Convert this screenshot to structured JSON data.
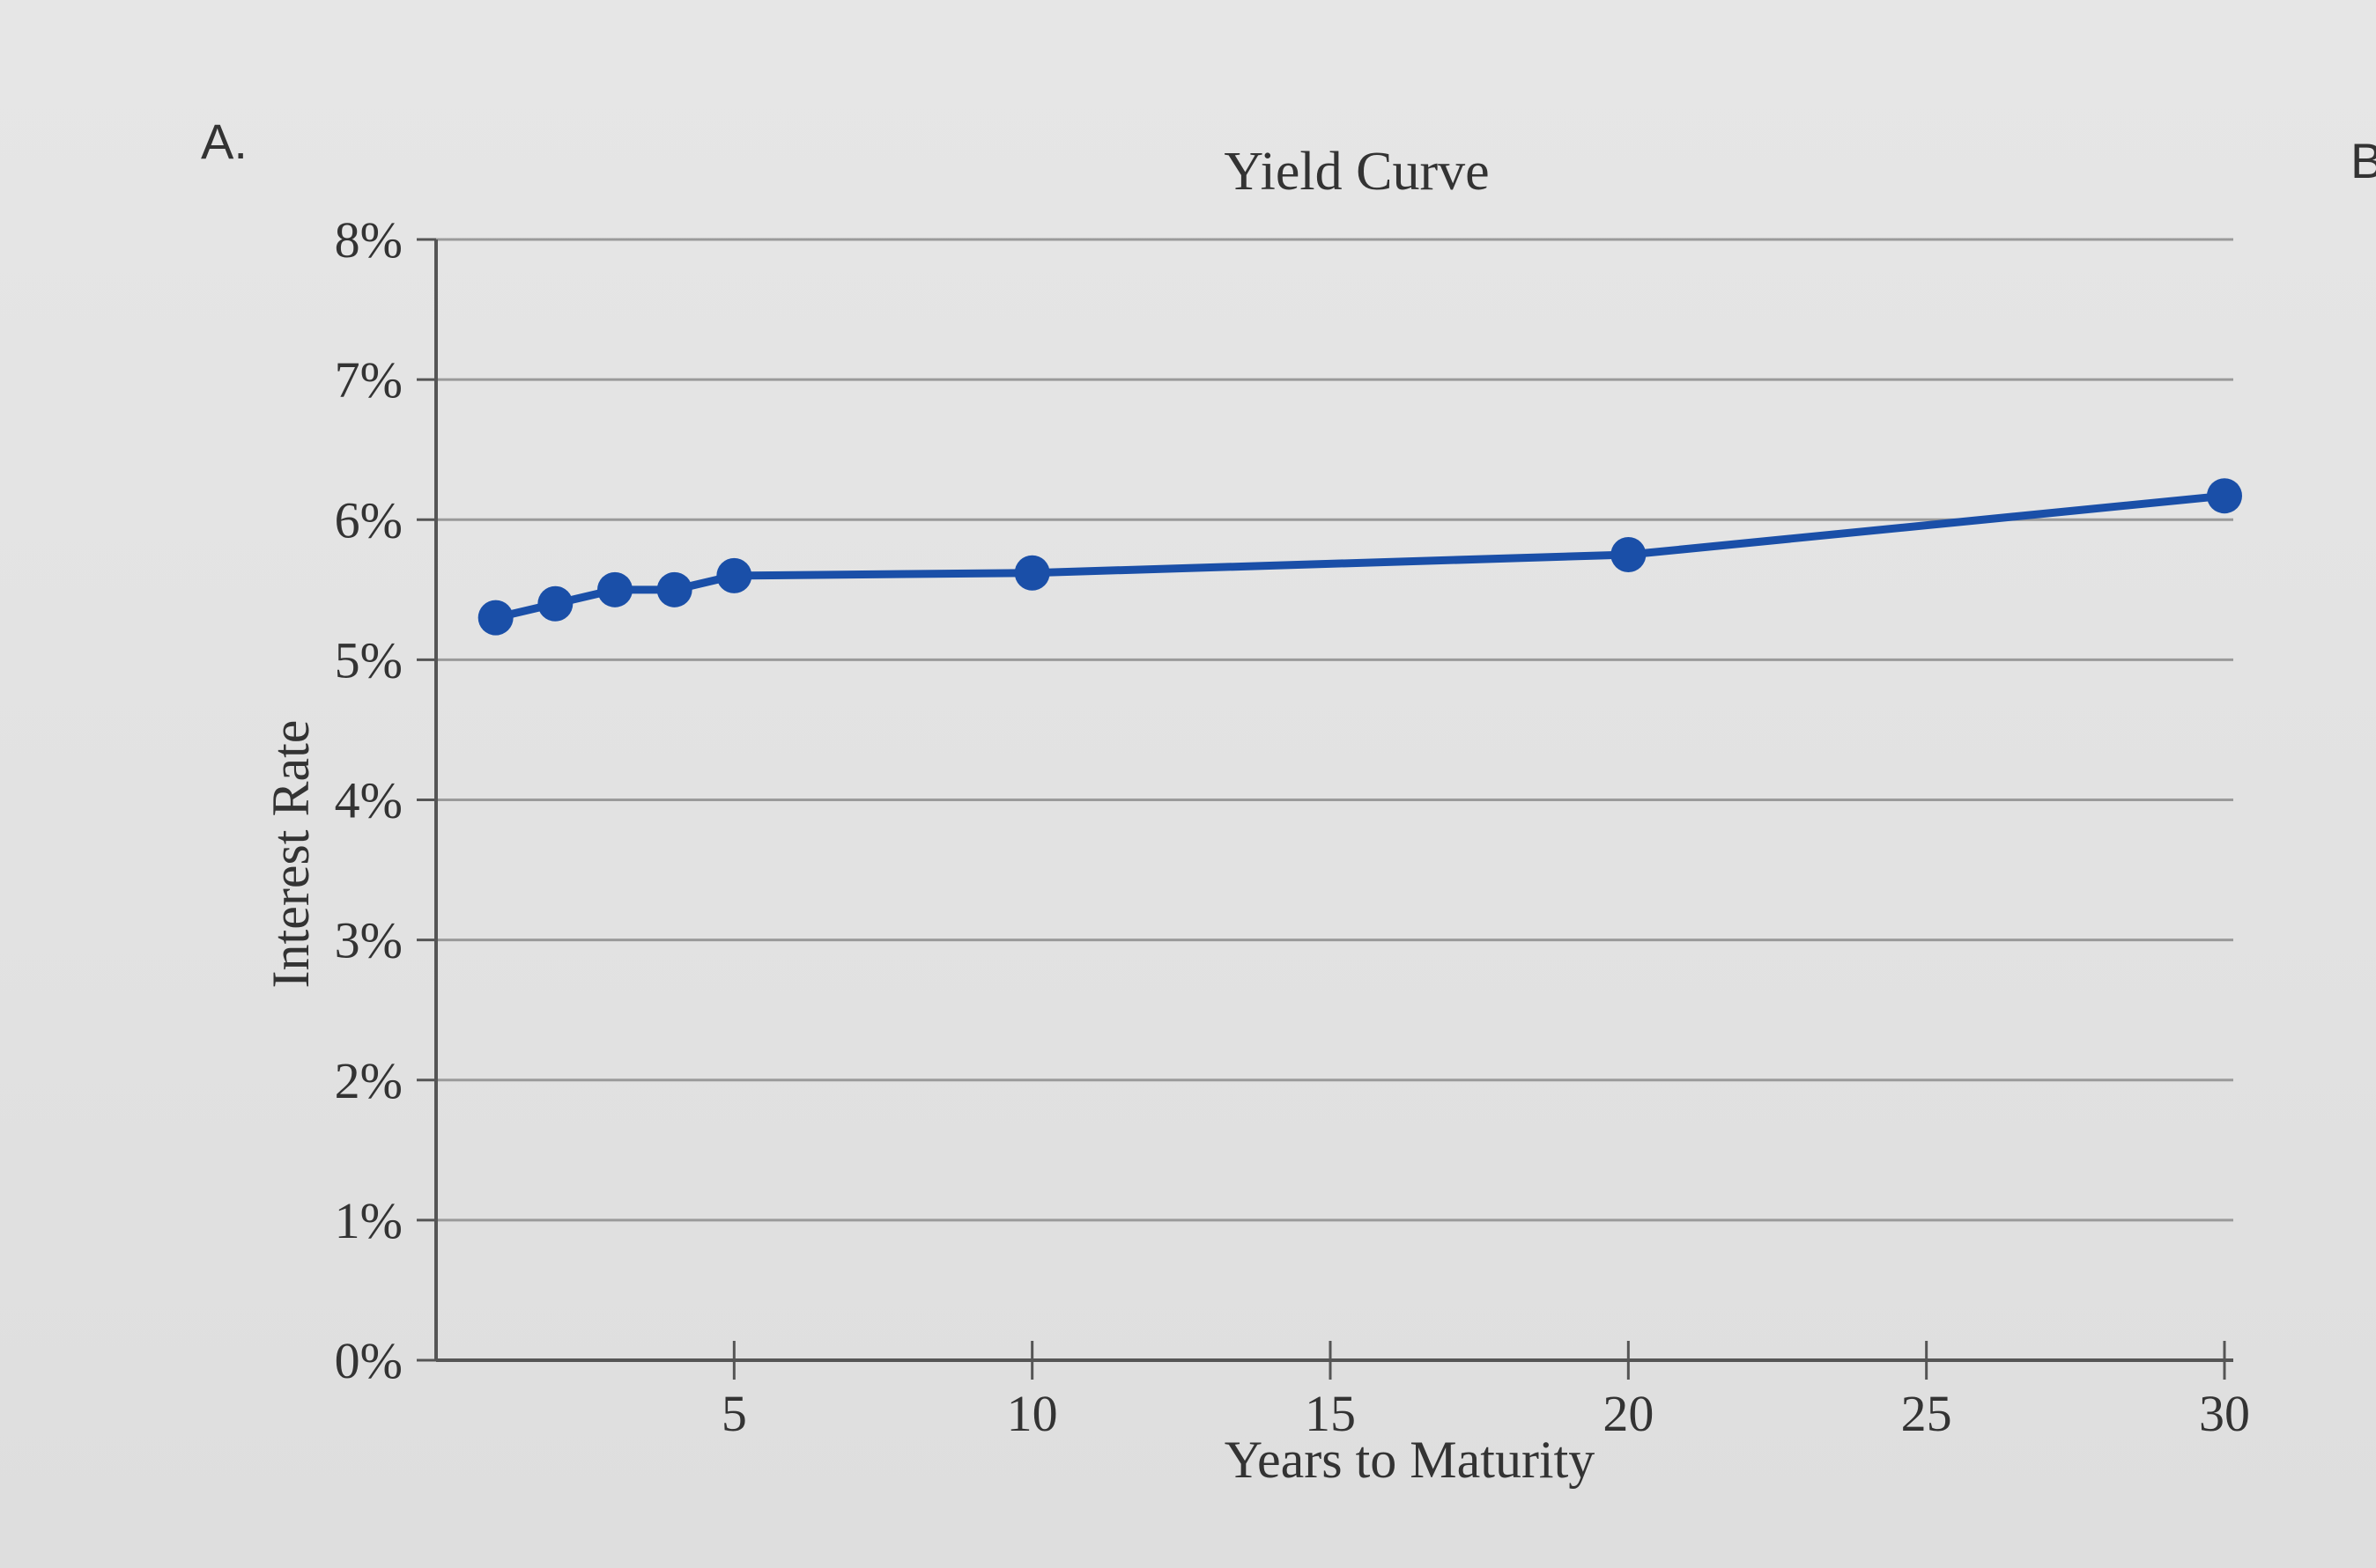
{
  "figure_labels": {
    "left": "A.",
    "right": "B"
  },
  "chart_data": {
    "type": "line",
    "title": "Yield Curve",
    "xlabel": "Years to Maturity",
    "ylabel": "Interest Rate",
    "xlim": [
      0,
      30
    ],
    "ylim": [
      0,
      8
    ],
    "x_ticks": [
      5,
      10,
      15,
      20,
      25,
      30
    ],
    "x_tick_labels": [
      "5",
      "10",
      "15",
      "20",
      "25",
      "30"
    ],
    "y_ticks": [
      0,
      1,
      2,
      3,
      4,
      5,
      6,
      7,
      8
    ],
    "y_tick_labels": [
      "0%",
      "1%",
      "2%",
      "3%",
      "4%",
      "5%",
      "6%",
      "7%",
      "8%"
    ],
    "grid": true,
    "series": [
      {
        "color": "#1a4fa8",
        "x": [
          1,
          2,
          3,
          4,
          5,
          10,
          20,
          30
        ],
        "y": [
          5.3,
          5.4,
          5.5,
          5.5,
          5.6,
          5.62,
          5.75,
          6.17
        ]
      }
    ]
  }
}
